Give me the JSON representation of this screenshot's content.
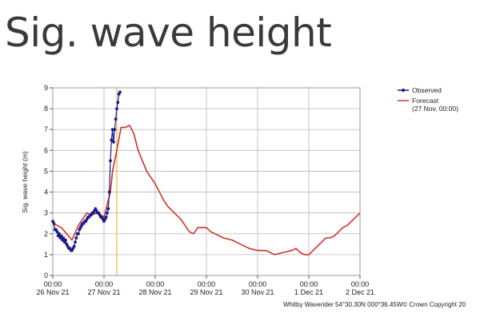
{
  "page": {
    "title": "Sig. wave height"
  },
  "chart_data": {
    "type": "line",
    "title": "Sig. wave height",
    "ylabel": "Sig. wave height (m)",
    "xlabel": "",
    "ylim": [
      0,
      9
    ],
    "yticks": [
      0,
      1,
      2,
      3,
      4,
      5,
      6,
      7,
      8,
      9
    ],
    "xlim": [
      0,
      144
    ],
    "xticks": [
      {
        "x": 0,
        "time": "00:00",
        "date": "26 Nov 21"
      },
      {
        "x": 24,
        "time": "00:00",
        "date": "27 Nov 21"
      },
      {
        "x": 48,
        "time": "00:00",
        "date": "28 Nov 21"
      },
      {
        "x": 72,
        "time": "00:00",
        "date": "29 Nov 21"
      },
      {
        "x": 96,
        "time": "00:00",
        "date": "30 Nov 21"
      },
      {
        "x": 120,
        "time": "00:00",
        "date": "1 Dec 21"
      },
      {
        "x": 144,
        "time": "00:00",
        "date": "2 Dec 21"
      }
    ],
    "forecast_start": 30,
    "grid": true,
    "legend_position": "right",
    "legend": [
      {
        "name": "Observed",
        "color": "#1a1a8c"
      },
      {
        "name": "Forecast",
        "sub": "(27 Nov, 00:00)",
        "color": "#d0322a"
      }
    ],
    "marker_color": "#f0a030",
    "series": [
      {
        "name": "Observed",
        "color": "#1a1a8c",
        "x": [
          0,
          0.5,
          1,
          1.5,
          2,
          2.5,
          3,
          3.5,
          4,
          4.5,
          5,
          5.5,
          6,
          6.5,
          7,
          7.5,
          8,
          8.5,
          9,
          9.5,
          10,
          10.5,
          11,
          11.5,
          12,
          12.5,
          13,
          13.5,
          14,
          14.5,
          15,
          15.5,
          16,
          16.5,
          17,
          17.5,
          18,
          18.5,
          19,
          19.5,
          20,
          20.5,
          21,
          21.5,
          22,
          22.5,
          23,
          23.5,
          24,
          24.5,
          25,
          25.5,
          26,
          26.5,
          27,
          27.5,
          28,
          28.5,
          29,
          29.5,
          30,
          30.5,
          31,
          31.5
        ],
        "values": [
          2.6,
          2.5,
          2.2,
          2.2,
          2.1,
          1.9,
          2.0,
          1.8,
          1.9,
          1.7,
          1.8,
          1.6,
          1.7,
          1.5,
          1.4,
          1.3,
          1.3,
          1.2,
          1.2,
          1.3,
          1.4,
          1.6,
          1.8,
          2.0,
          2.0,
          2.2,
          2.3,
          2.4,
          2.5,
          2.5,
          2.6,
          2.6,
          2.7,
          2.8,
          2.8,
          2.9,
          2.9,
          3.0,
          3.0,
          3.1,
          3.2,
          3.1,
          3.0,
          3.0,
          2.9,
          2.8,
          2.8,
          2.7,
          2.6,
          2.7,
          2.8,
          3.0,
          3.2,
          4.0,
          5.5,
          6.5,
          7.0,
          6.4,
          7.0,
          7.5,
          8.0,
          8.3,
          8.7,
          8.8
        ]
      },
      {
        "name": "Forecast",
        "color": "#d0322a",
        "x": [
          0,
          4,
          9,
          12,
          16,
          18,
          21,
          24,
          27,
          28,
          30,
          32,
          34,
          36,
          38,
          40,
          42,
          44,
          46,
          48,
          50,
          52,
          54,
          56,
          58,
          60,
          62,
          64,
          66,
          68,
          70,
          72,
          74,
          76,
          78,
          80,
          84,
          88,
          92,
          96,
          100,
          104,
          108,
          112,
          114,
          116,
          118,
          120,
          122,
          124,
          126,
          128,
          130,
          132,
          134,
          136,
          138,
          140,
          142,
          144
        ],
        "values": [
          2.5,
          2.3,
          1.7,
          2.4,
          3.0,
          2.9,
          3.0,
          2.8,
          4.0,
          5.0,
          6.0,
          7.1,
          7.1,
          7.2,
          6.8,
          6.0,
          5.5,
          5.0,
          4.7,
          4.4,
          4.0,
          3.6,
          3.3,
          3.1,
          2.9,
          2.7,
          2.4,
          2.1,
          2.0,
          2.3,
          2.3,
          2.3,
          2.1,
          2.0,
          1.9,
          1.8,
          1.7,
          1.5,
          1.3,
          1.2,
          1.2,
          1.0,
          1.1,
          1.2,
          1.3,
          1.1,
          1.0,
          1.0,
          1.2,
          1.4,
          1.6,
          1.8,
          1.8,
          1.9,
          2.1,
          2.3,
          2.4,
          2.6,
          2.8,
          3.0
        ]
      }
    ],
    "footnote": "Whitby Waverider 54°30.30N 000°36.45W© Crown Copyright 20"
  }
}
